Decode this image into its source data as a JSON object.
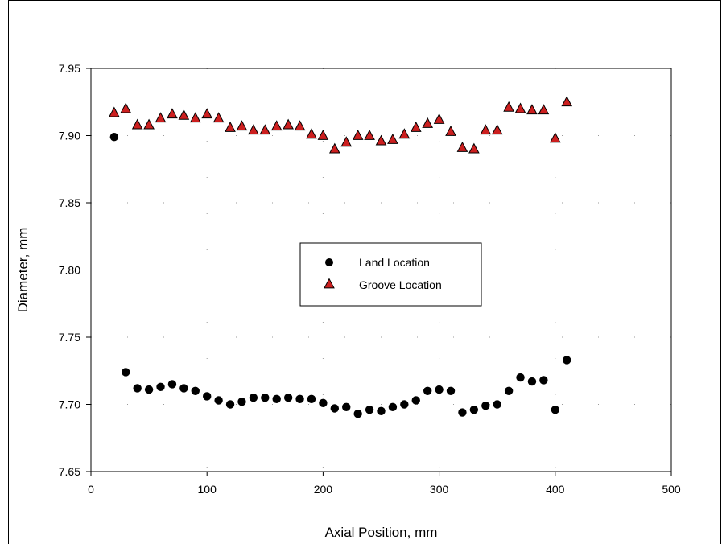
{
  "chart_data": {
    "type": "scatter",
    "title": "",
    "xlabel": "Axial Position, mm",
    "ylabel": "Diameter, mm",
    "xlim": [
      0,
      500
    ],
    "ylim": [
      7.65,
      7.95
    ],
    "x_ticks": [
      0,
      100,
      200,
      300,
      400,
      500
    ],
    "y_ticks": [
      7.65,
      7.7,
      7.75,
      7.8,
      7.85,
      7.9,
      7.95
    ],
    "x_tick_labels": [
      "0",
      "100",
      "200",
      "300",
      "400",
      "500"
    ],
    "y_tick_labels": [
      "7.65",
      "7.70",
      "7.75",
      "7.80",
      "7.85",
      "7.90",
      "7.95"
    ],
    "grid": "dotted",
    "legend_position": "center",
    "series": [
      {
        "name": "Land Location",
        "marker": "circle",
        "color": "#000000",
        "x": [
          20,
          30,
          40,
          50,
          60,
          70,
          80,
          90,
          100,
          110,
          120,
          130,
          140,
          150,
          160,
          170,
          180,
          190,
          200,
          210,
          220,
          230,
          240,
          250,
          260,
          270,
          280,
          290,
          300,
          310,
          320,
          330,
          340,
          350,
          360,
          370,
          380,
          390,
          400,
          410
        ],
        "y": [
          7.899,
          7.724,
          7.712,
          7.711,
          7.713,
          7.715,
          7.712,
          7.71,
          7.706,
          7.703,
          7.7,
          7.702,
          7.705,
          7.705,
          7.704,
          7.705,
          7.704,
          7.704,
          7.701,
          7.697,
          7.698,
          7.693,
          7.696,
          7.695,
          7.698,
          7.7,
          7.703,
          7.71,
          7.711,
          7.71,
          7.694,
          7.696,
          7.699,
          7.7,
          7.71,
          7.72,
          7.717,
          7.718,
          7.696,
          7.733
        ]
      },
      {
        "name": "Groove Location",
        "marker": "triangle",
        "color": "#cc1f1f",
        "x": [
          20,
          30,
          40,
          50,
          60,
          70,
          80,
          90,
          100,
          110,
          120,
          130,
          140,
          150,
          160,
          170,
          180,
          190,
          200,
          210,
          220,
          230,
          240,
          250,
          260,
          270,
          280,
          290,
          300,
          310,
          320,
          330,
          340,
          350,
          360,
          370,
          380,
          390,
          400,
          410
        ],
        "y": [
          7.917,
          7.92,
          7.908,
          7.908,
          7.913,
          7.916,
          7.915,
          7.913,
          7.916,
          7.913,
          7.906,
          7.907,
          7.904,
          7.904,
          7.907,
          7.908,
          7.907,
          7.901,
          7.9,
          7.89,
          7.895,
          7.9,
          7.9,
          7.896,
          7.897,
          7.901,
          7.906,
          7.909,
          7.912,
          7.903,
          7.891,
          7.89,
          7.904,
          7.904,
          7.921,
          7.92,
          7.919,
          7.919,
          7.898,
          7.925
        ]
      }
    ]
  }
}
